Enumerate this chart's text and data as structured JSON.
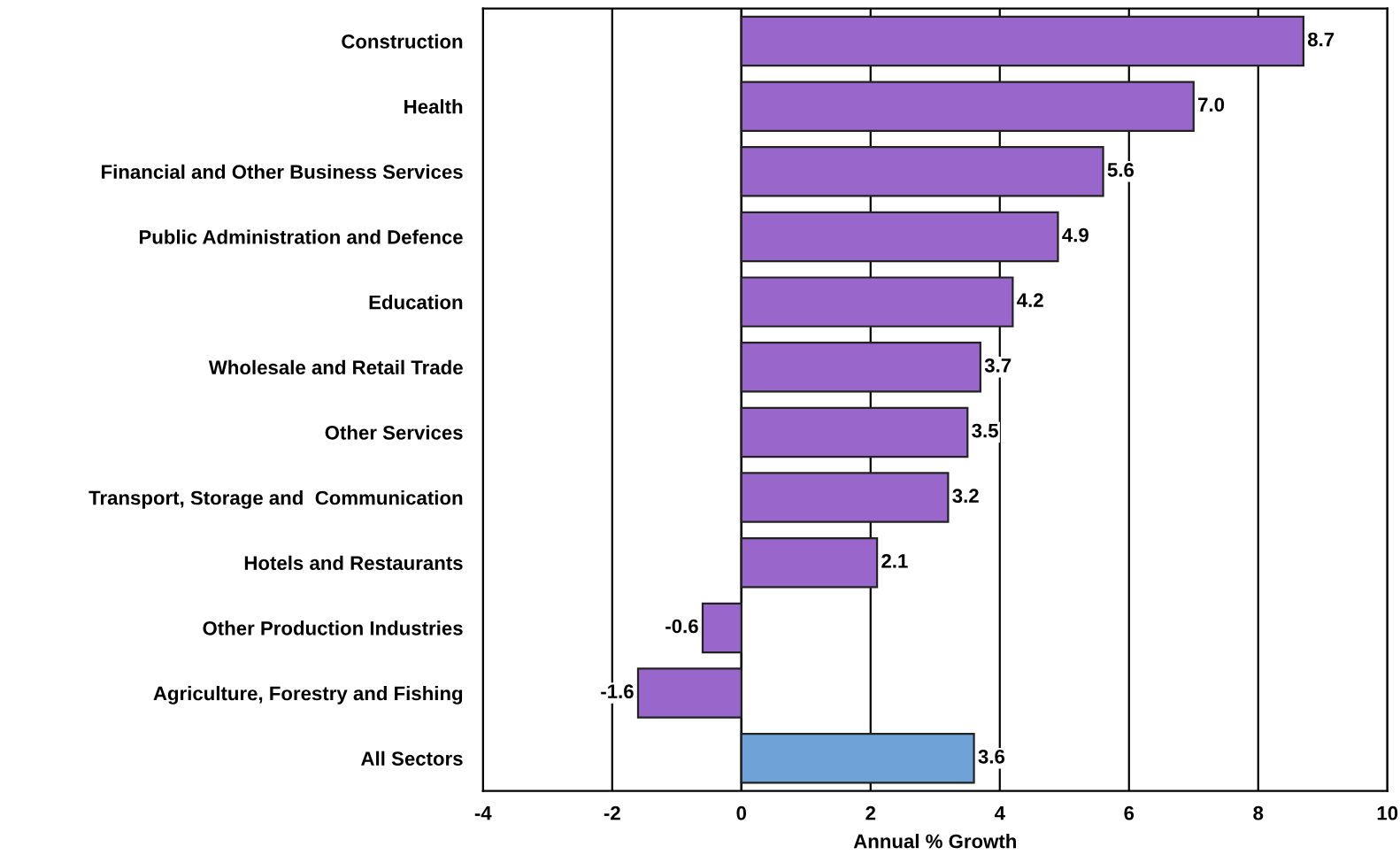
{
  "chart_data": {
    "type": "bar",
    "orientation": "horizontal",
    "xlabel": "Annual % Growth",
    "categories": [
      "Construction",
      "Health",
      "Financial and Other Business Services",
      "Public Administration and Defence",
      "Education",
      "Wholesale and Retail Trade",
      "Other Services",
      "Transport, Storage and  Communication",
      "Hotels and Restaurants",
      "Other Production Industries",
      "Agriculture, Forestry and Fishing",
      "All Sectors"
    ],
    "values": [
      8.7,
      7.0,
      5.6,
      4.9,
      4.2,
      3.7,
      3.5,
      3.2,
      2.1,
      -0.6,
      -1.6,
      3.6
    ],
    "colors": [
      "#9966cc",
      "#9966cc",
      "#9966cc",
      "#9966cc",
      "#9966cc",
      "#9966cc",
      "#9966cc",
      "#9966cc",
      "#9966cc",
      "#9966cc",
      "#9966cc",
      "#6fa3d8"
    ],
    "xlim": [
      -4,
      10
    ],
    "xticks": [
      -4,
      -2,
      0,
      2,
      4,
      6,
      8,
      10
    ],
    "grid": "x",
    "value_labels": [
      "8.7",
      "7.0",
      "5.6",
      "4.9",
      "4.2",
      "3.7",
      "3.5",
      "3.2",
      "2.1",
      "-0.6",
      "-1.6",
      "3.6"
    ]
  }
}
